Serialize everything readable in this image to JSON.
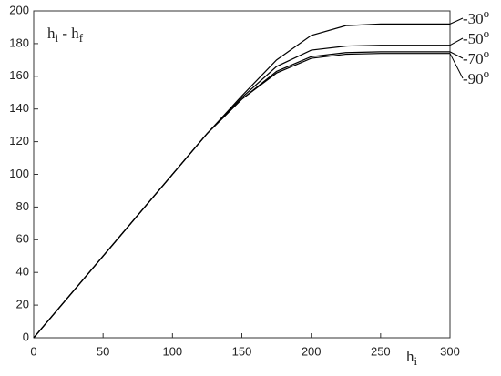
{
  "chart_data": {
    "type": "line",
    "ylabel_parts": [
      "h",
      "i",
      " - h",
      "f"
    ],
    "xlabel_parts": [
      "h",
      "i"
    ],
    "label_superscript": "o",
    "x": [
      0,
      50,
      100,
      125,
      150,
      175,
      200,
      225,
      250,
      275,
      300
    ],
    "series": [
      {
        "name": "-30",
        "color": "#000000",
        "values": [
          0,
          50,
          100,
          125,
          148,
          170,
          185,
          191,
          192,
          192,
          192
        ]
      },
      {
        "name": "-50",
        "color": "#000000",
        "values": [
          0,
          50,
          100,
          125,
          147,
          166,
          176,
          178.5,
          179,
          179,
          179
        ]
      },
      {
        "name": "-70",
        "color": "#000000",
        "values": [
          0,
          50,
          100,
          125,
          146,
          163,
          172,
          174.5,
          175,
          175,
          175
        ]
      },
      {
        "name": "-90",
        "color": "#000000",
        "values": [
          0,
          50,
          100,
          125,
          146,
          162,
          171,
          173.5,
          174,
          174,
          174
        ]
      }
    ],
    "xlim": [
      0,
      300
    ],
    "xticks": [
      0,
      50,
      100,
      150,
      200,
      250,
      300
    ],
    "ylim": [
      0,
      200
    ],
    "yticks": [
      0,
      20,
      40,
      60,
      80,
      100,
      120,
      140,
      160,
      180,
      200
    ],
    "grid": false
  }
}
